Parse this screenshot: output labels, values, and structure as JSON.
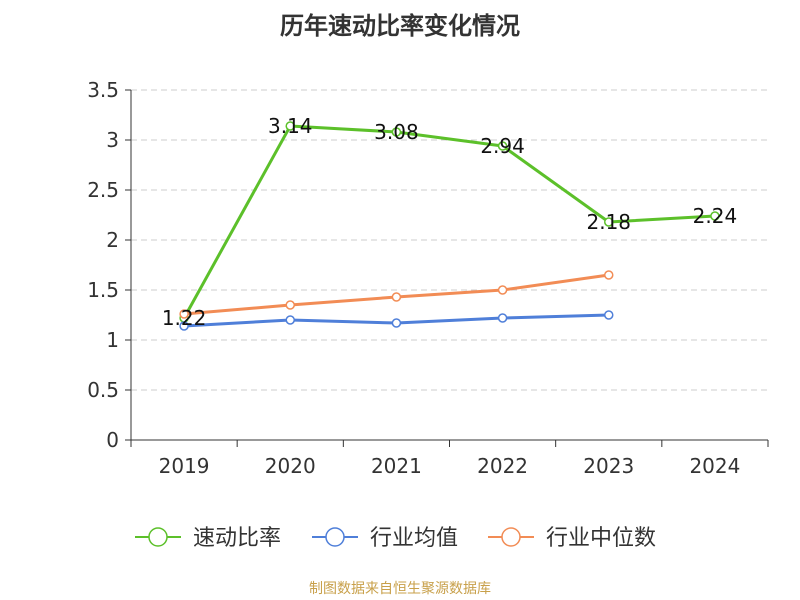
{
  "title": "历年速动比率变化情况",
  "source": "制图数据来自恒生聚源数据库",
  "chart_data": {
    "type": "line",
    "categories": [
      "2019",
      "2020",
      "2021",
      "2022",
      "2023",
      "2024"
    ],
    "ylim": [
      0,
      3.5
    ],
    "yticks": [
      "0",
      "0.5",
      "1",
      "1.5",
      "2",
      "2.5",
      "3",
      "3.5"
    ],
    "grid": true,
    "legend_position": "bottom",
    "series": [
      {
        "name": "速动比率",
        "color": "#5cc02a",
        "values": [
          1.22,
          3.14,
          3.08,
          2.94,
          2.18,
          2.24
        ],
        "labels": [
          "1.22",
          "3.14",
          "3.08",
          "2.94",
          "2.18",
          "2.24"
        ],
        "show_labels": true
      },
      {
        "name": "行业均值",
        "color": "#4f7fd9",
        "values": [
          1.14,
          1.2,
          1.17,
          1.22,
          1.25,
          null
        ],
        "show_labels": false
      },
      {
        "name": "行业中位数",
        "color": "#f28c55",
        "values": [
          1.26,
          1.35,
          1.43,
          1.5,
          1.65,
          null
        ],
        "show_labels": false
      }
    ]
  }
}
